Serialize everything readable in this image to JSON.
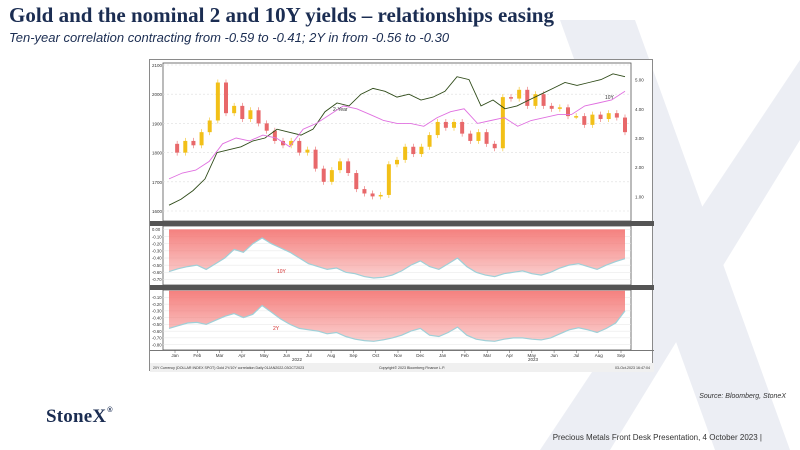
{
  "slide": {
    "title": "Gold and the nominal 2 and 10Y yields – relationships easing",
    "subtitle": "Ten-year correlation contracting from -0.59 to -0.41; 2Y in from -0.56 to -0.30",
    "source": "Source: Bloomberg, StoneX",
    "logo": "StoneX",
    "logo_mark": "®",
    "footer": "Precious Metals Front Desk Presentation, 4 October 2023 |"
  },
  "colors": {
    "title": "#1b2d52",
    "gold_up": "#f2c018",
    "gold_down": "#e8686a",
    "two_year": "#2e4a18",
    "ten_year": "#e070e0",
    "corr_fill": "#f47a78",
    "corr_edge": "#9fd0d8",
    "watermark": "#eceef4"
  },
  "chart_data": [
    {
      "type": "line",
      "title": "",
      "xlabel": "",
      "ylabel": "",
      "x_ticks": [
        "Jan",
        "Feb",
        "Mar",
        "Apr",
        "May",
        "Jun",
        "Jul",
        "Aug",
        "Sep",
        "Oct",
        "Nov",
        "Dec",
        "Jan",
        "Feb",
        "Mar",
        "Apr",
        "May",
        "Jun",
        "Jul",
        "Aug",
        "Sep"
      ],
      "x_year_labels": [
        "2022",
        "2023"
      ],
      "ylim_left": [
        1600,
        2100
      ],
      "yticks_left": [
        "2100",
        "2000",
        "1900",
        "1800",
        "1700",
        "1600"
      ],
      "ylim_right": [
        0.5,
        5.5
      ],
      "yticks_right": [
        "5.00",
        "4.00",
        "3.00",
        "2.00",
        "1.00"
      ],
      "grid": true,
      "series": [
        {
          "name": "",
          "kind": "candlestick",
          "axis": "left",
          "values": [
            1830,
            1800,
            1840,
            1825,
            1870,
            1910,
            2040,
            1935,
            1960,
            1915,
            1945,
            1900,
            1875,
            1840,
            1825,
            1840,
            1800,
            1810,
            1745,
            1700,
            1740,
            1770,
            1730,
            1675,
            1660,
            1650,
            1655,
            1760,
            1775,
            1820,
            1795,
            1820,
            1860,
            1905,
            1885,
            1905,
            1865,
            1840,
            1870,
            1830,
            1815,
            1990,
            1985,
            2015,
            1960,
            2000,
            1960,
            1950,
            1955,
            1925,
            1925,
            1895,
            1930,
            1915,
            1935,
            1920,
            1870
          ]
        },
        {
          "name": "2-Year",
          "axis": "right",
          "values": [
            0.7,
            0.9,
            1.2,
            1.6,
            2.5,
            2.6,
            2.7,
            2.9,
            3.0,
            3.3,
            3.2,
            3.1,
            3.3,
            3.9,
            4.2,
            4.1,
            4.5,
            4.7,
            4.6,
            4.4,
            4.5,
            4.3,
            4.4,
            4.6,
            5.1,
            5.0,
            4.1,
            4.3,
            4.0,
            4.1,
            4.3,
            4.5,
            4.7,
            4.9,
            4.8,
            4.9,
            5.0,
            5.2,
            5.1
          ]
        },
        {
          "name": "10Y",
          "axis": "right",
          "values": [
            1.6,
            1.8,
            1.9,
            2.2,
            2.8,
            3.0,
            2.9,
            3.1,
            3.0,
            2.7,
            3.3,
            3.5,
            3.8,
            4.1,
            4.0,
            3.8,
            3.6,
            3.5,
            3.5,
            3.4,
            3.7,
            3.9,
            4.0,
            3.5,
            3.6,
            3.7,
            3.4,
            3.6,
            3.7,
            3.8,
            3.8,
            4.1,
            4.2,
            4.3,
            4.6
          ]
        }
      ]
    },
    {
      "type": "area",
      "title": "",
      "series_label": "10Y",
      "ylim": [
        -0.75,
        0.02
      ],
      "yticks": [
        "0.00",
        "-0.10",
        "-0.20",
        "-0.30",
        "-0.40",
        "-0.50",
        "-0.60",
        "-0.70"
      ],
      "values": [
        -0.59,
        -0.55,
        -0.52,
        -0.5,
        -0.56,
        -0.48,
        -0.4,
        -0.28,
        -0.32,
        -0.2,
        -0.12,
        -0.2,
        -0.26,
        -0.32,
        -0.4,
        -0.48,
        -0.52,
        -0.56,
        -0.54,
        -0.6,
        -0.62,
        -0.66,
        -0.68,
        -0.67,
        -0.64,
        -0.58,
        -0.5,
        -0.44,
        -0.52,
        -0.56,
        -0.48,
        -0.4,
        -0.52,
        -0.6,
        -0.64,
        -0.66,
        -0.62,
        -0.6,
        -0.58,
        -0.62,
        -0.64,
        -0.6,
        -0.54,
        -0.5,
        -0.48,
        -0.52,
        -0.56,
        -0.5,
        -0.45,
        -0.41
      ]
    },
    {
      "type": "area",
      "title": "",
      "series_label": "2Y",
      "ylim": [
        -0.85,
        -0.02
      ],
      "yticks": [
        "-0.10",
        "-0.20",
        "-0.30",
        "-0.40",
        "-0.50",
        "-0.60",
        "-0.70",
        "-0.80"
      ],
      "values": [
        -0.56,
        -0.52,
        -0.48,
        -0.47,
        -0.5,
        -0.44,
        -0.38,
        -0.34,
        -0.4,
        -0.35,
        -0.22,
        -0.32,
        -0.42,
        -0.5,
        -0.56,
        -0.58,
        -0.6,
        -0.64,
        -0.62,
        -0.68,
        -0.72,
        -0.74,
        -0.75,
        -0.73,
        -0.7,
        -0.66,
        -0.6,
        -0.56,
        -0.66,
        -0.68,
        -0.62,
        -0.54,
        -0.66,
        -0.72,
        -0.74,
        -0.75,
        -0.72,
        -0.7,
        -0.7,
        -0.72,
        -0.73,
        -0.7,
        -0.64,
        -0.58,
        -0.55,
        -0.58,
        -0.62,
        -0.56,
        -0.48,
        -0.3
      ]
    }
  ],
  "chart_footer": {
    "left": "20Y Currency  (DOLLAR INDEX SPOT)  Gold  2Y/10Y correlation   Daily 01JAN2022-03OCT2023",
    "center": "Copyright© 2023 Bloomberg Finance L.P.",
    "right": "03-Oct-2023 16:47:04"
  }
}
